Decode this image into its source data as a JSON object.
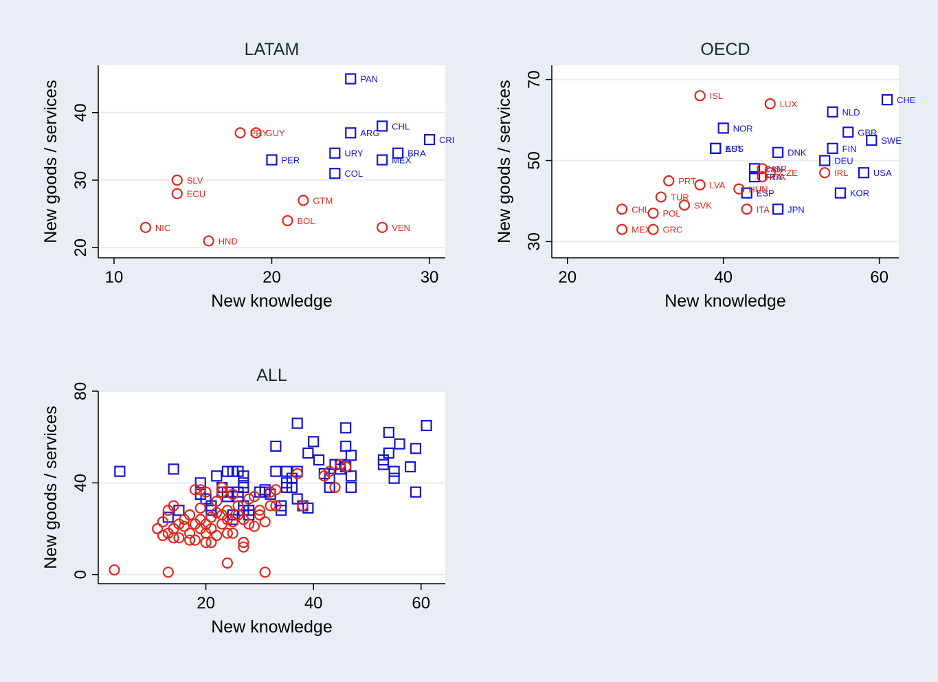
{
  "colors": {
    "high": "#1414d2",
    "low": "#e0271c",
    "background": "#e9eef4",
    "plot_background": "#ffffff",
    "grid": "#e6ebf0"
  },
  "chart_data": [
    {
      "type": "scatter",
      "title": "LATAM",
      "xlabel": "New knowledge",
      "ylabel": "New goods / services",
      "xlim": [
        9,
        31
      ],
      "ylim": [
        18.5,
        47
      ],
      "xticks": [
        "10",
        "20",
        "30"
      ],
      "yticks": [
        "20",
        "30",
        "40"
      ],
      "grid": true,
      "points": [
        {
          "label": "PAN",
          "x": 25,
          "y": 45,
          "group": "high"
        },
        {
          "label": "CHL",
          "x": 27,
          "y": 38,
          "group": "high"
        },
        {
          "label": "ARG",
          "x": 25,
          "y": 37,
          "group": "high"
        },
        {
          "label": "CRI",
          "x": 30,
          "y": 36,
          "group": "high"
        },
        {
          "label": "URY",
          "x": 24,
          "y": 34,
          "group": "high"
        },
        {
          "label": "BRA",
          "x": 28,
          "y": 34,
          "group": "high"
        },
        {
          "label": "PER",
          "x": 20,
          "y": 33,
          "group": "high"
        },
        {
          "label": "MEX",
          "x": 27,
          "y": 33,
          "group": "high"
        },
        {
          "label": "COL",
          "x": 24,
          "y": 31,
          "group": "high"
        },
        {
          "label": "PRY",
          "x": 18,
          "y": 37,
          "group": "low"
        },
        {
          "label": "GUY",
          "x": 19,
          "y": 37,
          "group": "low"
        },
        {
          "label": "SLV",
          "x": 14,
          "y": 30,
          "group": "low"
        },
        {
          "label": "ECU",
          "x": 14,
          "y": 28,
          "group": "low"
        },
        {
          "label": "GTM",
          "x": 22,
          "y": 27,
          "group": "low"
        },
        {
          "label": "BOL",
          "x": 21,
          "y": 24,
          "group": "low"
        },
        {
          "label": "NIC",
          "x": 12,
          "y": 23,
          "group": "low"
        },
        {
          "label": "VEN",
          "x": 27,
          "y": 23,
          "group": "low"
        },
        {
          "label": "HND",
          "x": 16,
          "y": 21,
          "group": "low"
        }
      ]
    },
    {
      "type": "scatter",
      "title": "OECD",
      "xlabel": "New knowledge",
      "ylabel": "New goods / services",
      "xlim": [
        18,
        62.5
      ],
      "ylim": [
        26,
        73.5
      ],
      "xticks": [
        "20",
        "40",
        "60"
      ],
      "yticks": [
        "30",
        "50",
        "70"
      ],
      "grid": true,
      "points": [
        {
          "label": "CHE",
          "x": 61,
          "y": 65,
          "group": "high"
        },
        {
          "label": "NLD",
          "x": 54,
          "y": 62,
          "group": "high"
        },
        {
          "label": "NOR",
          "x": 40,
          "y": 58,
          "group": "high"
        },
        {
          "label": "GBR",
          "x": 56,
          "y": 57,
          "group": "high"
        },
        {
          "label": "SWE",
          "x": 59,
          "y": 55,
          "group": "high"
        },
        {
          "label": "AUS",
          "x": 39,
          "y": 53,
          "group": "high"
        },
        {
          "label": "EST",
          "x": 39,
          "y": 53,
          "group": "high"
        },
        {
          "label": "FIN",
          "x": 54,
          "y": 53,
          "group": "high"
        },
        {
          "label": "DNK",
          "x": 47,
          "y": 52,
          "group": "high"
        },
        {
          "label": "DEU",
          "x": 53,
          "y": 50,
          "group": "high"
        },
        {
          "label": "CAN",
          "x": 44,
          "y": 48,
          "group": "high"
        },
        {
          "label": "USA",
          "x": 58,
          "y": 47,
          "group": "high"
        },
        {
          "label": "FRA",
          "x": 44,
          "y": 46,
          "group": "high"
        },
        {
          "label": "ESP",
          "x": 43,
          "y": 42,
          "group": "high"
        },
        {
          "label": "KOR",
          "x": 55,
          "y": 42,
          "group": "high"
        },
        {
          "label": "JPN",
          "x": 47,
          "y": 38,
          "group": "high"
        },
        {
          "label": "ISL",
          "x": 37,
          "y": 66,
          "group": "low"
        },
        {
          "label": "LUX",
          "x": 46,
          "y": 64,
          "group": "low"
        },
        {
          "label": "ISR",
          "x": 45,
          "y": 48,
          "group": "low"
        },
        {
          "label": "CZE",
          "x": 46,
          "y": 47,
          "group": "low"
        },
        {
          "label": "IRL",
          "x": 53,
          "y": 47,
          "group": "low"
        },
        {
          "label": "PRT",
          "x": 33,
          "y": 45,
          "group": "low"
        },
        {
          "label": "ITA",
          "x": 45,
          "y": 46,
          "group": "low"
        },
        {
          "label": "LVA",
          "x": 37,
          "y": 44,
          "group": "low"
        },
        {
          "label": "HUN",
          "x": 42,
          "y": 43,
          "group": "low"
        },
        {
          "label": "TUR",
          "x": 32,
          "y": 41,
          "group": "low"
        },
        {
          "label": "SVK",
          "x": 35,
          "y": 39,
          "group": "low"
        },
        {
          "label": "CHL",
          "x": 27,
          "y": 38,
          "group": "low"
        },
        {
          "label": "ITA",
          "x": 43,
          "y": 38,
          "group": "low"
        },
        {
          "label": "POL",
          "x": 31,
          "y": 37,
          "group": "low"
        },
        {
          "label": "MEX",
          "x": 27,
          "y": 33,
          "group": "low"
        },
        {
          "label": "GRC",
          "x": 31,
          "y": 33,
          "group": "low"
        }
      ]
    },
    {
      "type": "scatter",
      "title": "ALL",
      "xlabel": "New knowledge",
      "ylabel": "New goods / services",
      "xlim": [
        0,
        64.5
      ],
      "ylim": [
        -4,
        80
      ],
      "xticks": [
        "20",
        "40",
        "60"
      ],
      "yticks": [
        "0",
        "40",
        "80"
      ],
      "grid": true,
      "series": [
        {
          "group": "high",
          "points": [
            [
              4,
              45
            ],
            [
              14,
              46
            ],
            [
              13,
              25
            ],
            [
              15,
              28
            ],
            [
              19,
              40
            ],
            [
              19,
              35
            ],
            [
              20,
              33
            ],
            [
              21,
              30
            ],
            [
              21,
              28
            ],
            [
              22,
              43
            ],
            [
              23,
              38
            ],
            [
              23,
              36
            ],
            [
              24,
              45
            ],
            [
              24,
              36
            ],
            [
              24,
              34
            ],
            [
              25,
              45
            ],
            [
              25,
              26
            ],
            [
              25,
              24
            ],
            [
              26,
              45
            ],
            [
              26,
              36
            ],
            [
              26,
              34
            ],
            [
              27,
              43
            ],
            [
              27,
              40
            ],
            [
              27,
              38
            ],
            [
              27,
              30
            ],
            [
              27,
              28
            ],
            [
              28,
              28
            ],
            [
              28,
              26
            ],
            [
              30,
              36
            ],
            [
              31,
              37
            ],
            [
              31,
              36
            ],
            [
              32,
              35
            ],
            [
              33,
              56
            ],
            [
              33,
              45
            ],
            [
              34,
              30
            ],
            [
              34,
              28
            ],
            [
              35,
              45
            ],
            [
              35,
              40
            ],
            [
              35,
              38
            ],
            [
              36,
              42
            ],
            [
              36,
              38
            ],
            [
              37,
              66
            ],
            [
              37,
              45
            ],
            [
              37,
              33
            ],
            [
              38,
              30
            ],
            [
              39,
              29
            ],
            [
              40,
              58
            ],
            [
              39,
              53
            ],
            [
              41,
              50
            ],
            [
              42,
              44
            ],
            [
              43,
              42
            ],
            [
              43,
              38
            ],
            [
              44,
              48
            ],
            [
              45,
              48
            ],
            [
              45,
              46
            ],
            [
              46,
              64
            ],
            [
              46,
              56
            ],
            [
              46,
              47
            ],
            [
              47,
              52
            ],
            [
              47,
              43
            ],
            [
              47,
              38
            ],
            [
              53,
              50
            ],
            [
              53,
              48
            ],
            [
              54,
              62
            ],
            [
              54,
              53
            ],
            [
              55,
              45
            ],
            [
              55,
              42
            ],
            [
              56,
              57
            ],
            [
              58,
              47
            ],
            [
              59,
              55
            ],
            [
              59,
              36
            ],
            [
              61,
              65
            ]
          ]
        },
        {
          "group": "low",
          "points": [
            [
              3,
              2
            ],
            [
              11,
              20
            ],
            [
              12,
              23
            ],
            [
              12,
              17
            ],
            [
              13,
              28
            ],
            [
              13,
              18
            ],
            [
              13,
              1
            ],
            [
              14,
              30
            ],
            [
              14,
              20
            ],
            [
              14,
              16
            ],
            [
              15,
              16
            ],
            [
              15,
              22
            ],
            [
              16,
              21
            ],
            [
              16,
              24
            ],
            [
              17,
              15
            ],
            [
              17,
              26
            ],
            [
              17,
              18
            ],
            [
              18,
              37
            ],
            [
              18,
              22
            ],
            [
              18,
              15
            ],
            [
              19,
              37
            ],
            [
              19,
              29
            ],
            [
              19,
              24
            ],
            [
              19,
              20
            ],
            [
              20,
              14
            ],
            [
              20,
              18
            ],
            [
              20,
              22
            ],
            [
              20,
              36
            ],
            [
              21,
              25
            ],
            [
              21,
              14
            ],
            [
              21,
              20
            ],
            [
              22,
              32
            ],
            [
              22,
              27
            ],
            [
              22,
              17
            ],
            [
              23,
              38
            ],
            [
              23,
              36
            ],
            [
              23,
              26
            ],
            [
              23,
              22
            ],
            [
              24,
              28
            ],
            [
              24,
              24
            ],
            [
              24,
              18
            ],
            [
              24,
              5
            ],
            [
              25,
              35
            ],
            [
              25,
              23
            ],
            [
              25,
              18
            ],
            [
              26,
              30
            ],
            [
              26,
              26
            ],
            [
              27,
              24
            ],
            [
              27,
              14
            ],
            [
              27,
              12
            ],
            [
              28,
              33
            ],
            [
              28,
              22
            ],
            [
              29,
              34
            ],
            [
              29,
              21
            ],
            [
              30,
              28
            ],
            [
              30,
              26
            ],
            [
              31,
              23
            ],
            [
              31,
              1
            ],
            [
              32,
              36
            ],
            [
              32,
              30
            ],
            [
              33,
              37
            ],
            [
              33,
              30
            ],
            [
              37,
              44
            ],
            [
              38,
              30
            ],
            [
              42,
              43
            ],
            [
              43,
              45
            ],
            [
              44,
              38
            ],
            [
              45,
              48
            ],
            [
              46,
              47
            ]
          ]
        }
      ]
    }
  ]
}
